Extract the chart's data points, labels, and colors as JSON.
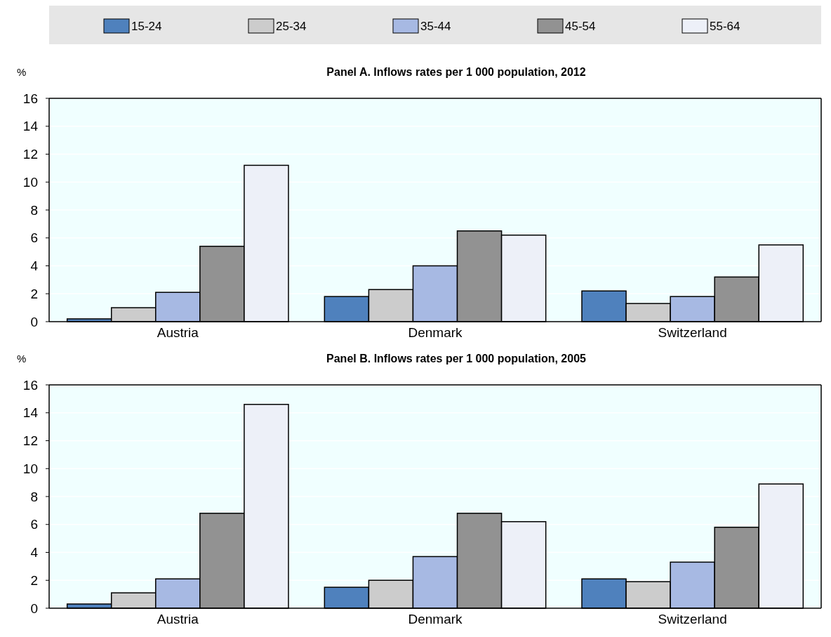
{
  "chart_data": [
    {
      "type": "bar",
      "title": "Panel A. Inflows rates per 1 000 population, 2012",
      "ylabel": "%",
      "categories": [
        "Austria",
        "Denmark",
        "Switzerland"
      ],
      "series": [
        {
          "name": "15-24",
          "color": "#4f81bd",
          "values": [
            0.2,
            1.8,
            2.2
          ]
        },
        {
          "name": "25-34",
          "color": "#cccccc",
          "values": [
            1.0,
            2.3,
            1.3
          ]
        },
        {
          "name": "35-44",
          "color": "#a7b9e3",
          "values": [
            2.1,
            4.0,
            1.8
          ]
        },
        {
          "name": "45-54",
          "color": "#929292",
          "values": [
            5.4,
            6.5,
            3.2
          ]
        },
        {
          "name": "55-64",
          "color": "#edf0f8",
          "values": [
            11.2,
            6.2,
            5.5
          ]
        }
      ],
      "ylim": [
        0,
        16
      ],
      "yticks": [
        0,
        2,
        4,
        6,
        8,
        10,
        12,
        14,
        16
      ],
      "grid": "y",
      "legend": "top"
    },
    {
      "type": "bar",
      "title": "Panel B. Inflows rates per 1 000 population, 2005",
      "ylabel": "%",
      "categories": [
        "Austria",
        "Denmark",
        "Switzerland"
      ],
      "series": [
        {
          "color": "#4f81bd",
          "values": [
            0.3,
            1.5,
            2.1
          ]
        },
        {
          "color": "#cccccc",
          "values": [
            1.1,
            2.0,
            1.9
          ]
        },
        {
          "color": "#a7b9e3",
          "values": [
            2.1,
            3.7,
            3.3
          ]
        },
        {
          "color": "#929292",
          "values": [
            6.8,
            6.8,
            5.8
          ]
        },
        {
          "color": "#edf0f8",
          "values": [
            14.6,
            6.2,
            8.9
          ]
        }
      ],
      "ylim": [
        0,
        16
      ],
      "yticks": [
        0,
        2,
        4,
        6,
        8,
        10,
        12,
        14,
        16
      ],
      "grid": "y"
    }
  ]
}
